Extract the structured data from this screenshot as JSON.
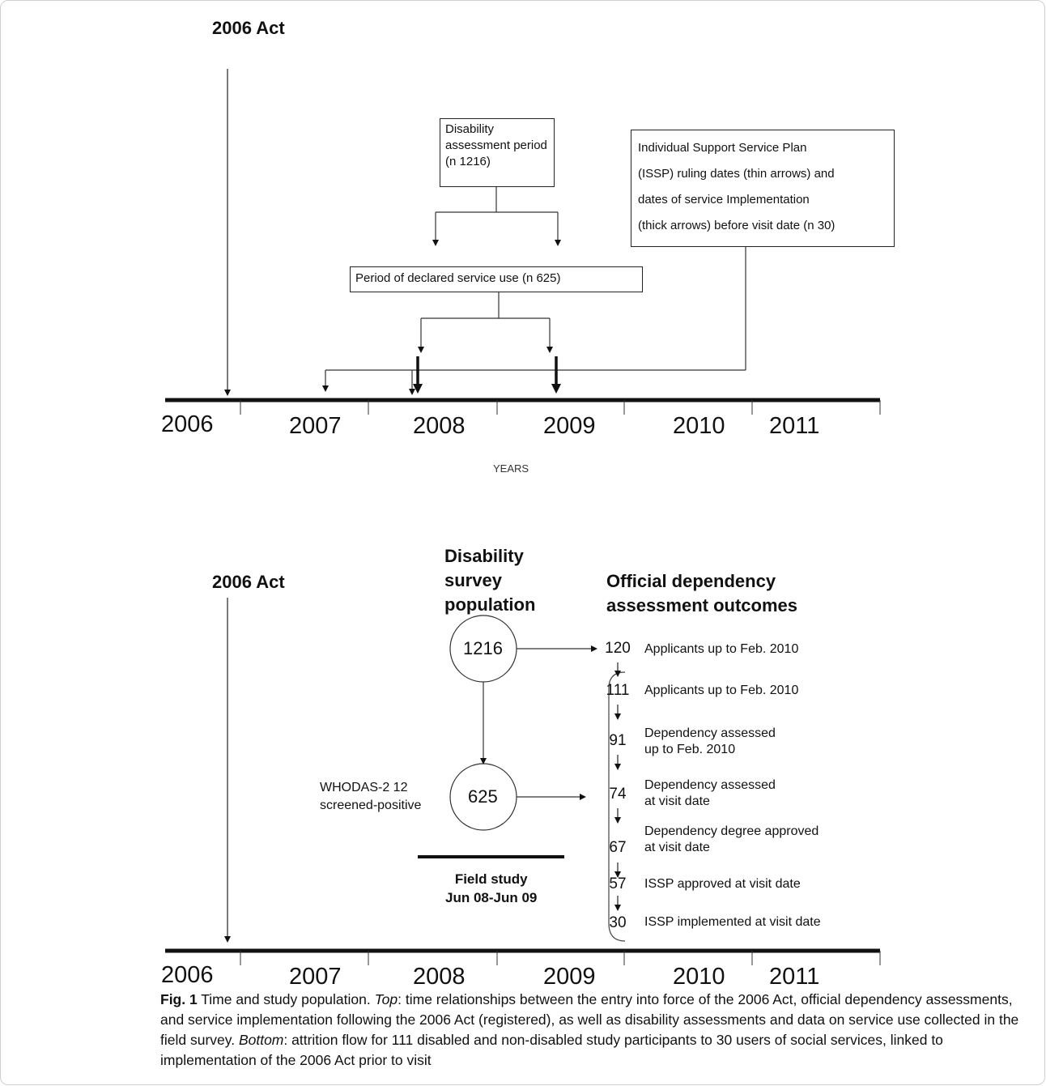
{
  "top": {
    "act_label": "2006 Act",
    "box_disability": "Disability assessment period (n 1216)",
    "box_service_use": "Period of declared service use (n 625)",
    "box_issp_line1": "Individual Support Service Plan",
    "box_issp_line2": "(ISSP) ruling dates (thin arrows) and",
    "box_issp_line3": "dates of service Implementation",
    "box_issp_line4": "(thick arrows) before visit date (n 30)",
    "years": [
      "2006",
      "2007",
      "2008",
      "2009",
      "2010",
      "2011"
    ],
    "axis_label": "YEARS"
  },
  "bottom": {
    "act_label": "2006 Act",
    "survey_heading": [
      "Disability",
      "survey",
      "population"
    ],
    "outcomes_heading": [
      "Official dependency",
      "assessment outcomes"
    ],
    "circle_total": "1216",
    "circle_screened": "625",
    "screen_label": [
      "WHODAS-2 12",
      "screened-positive"
    ],
    "field_study": [
      "Field study",
      "Jun 08-Jun 09"
    ],
    "flow": [
      {
        "n": "120",
        "label": [
          "Applicants up to Feb. 2010"
        ]
      },
      {
        "n": "111",
        "label": [
          "Applicants up to Feb. 2010"
        ]
      },
      {
        "n": "91",
        "label": [
          "Dependency assessed",
          "up to  Feb. 2010"
        ]
      },
      {
        "n": "74",
        "label": [
          "Dependency assessed",
          "at visit date"
        ]
      },
      {
        "n": "67",
        "label": [
          "Dependency degree approved",
          "at visit date"
        ]
      },
      {
        "n": "57",
        "label": [
          "ISSP approved at visit date"
        ]
      },
      {
        "n": "30",
        "label": [
          "ISSP implemented at visit date"
        ]
      }
    ],
    "years": [
      "2006",
      "2007",
      "2008",
      "2009",
      "2010",
      "2011"
    ]
  },
  "caption": {
    "fig": "Fig. 1",
    "title": " Time and study population. ",
    "top_label": "Top",
    "top_text": ": time relationships between the entry into force of the 2006 Act, official dependency assessments, and service implementation following the 2006 Act (registered), as well as disability assessments and data on service use collected in the field survey. ",
    "bottom_label": "Bottom",
    "bottom_text": ": attrition flow for 111 disabled and non-disabled study participants to 30 users of social services, linked to implementation of the 2006 Act prior to visit"
  }
}
